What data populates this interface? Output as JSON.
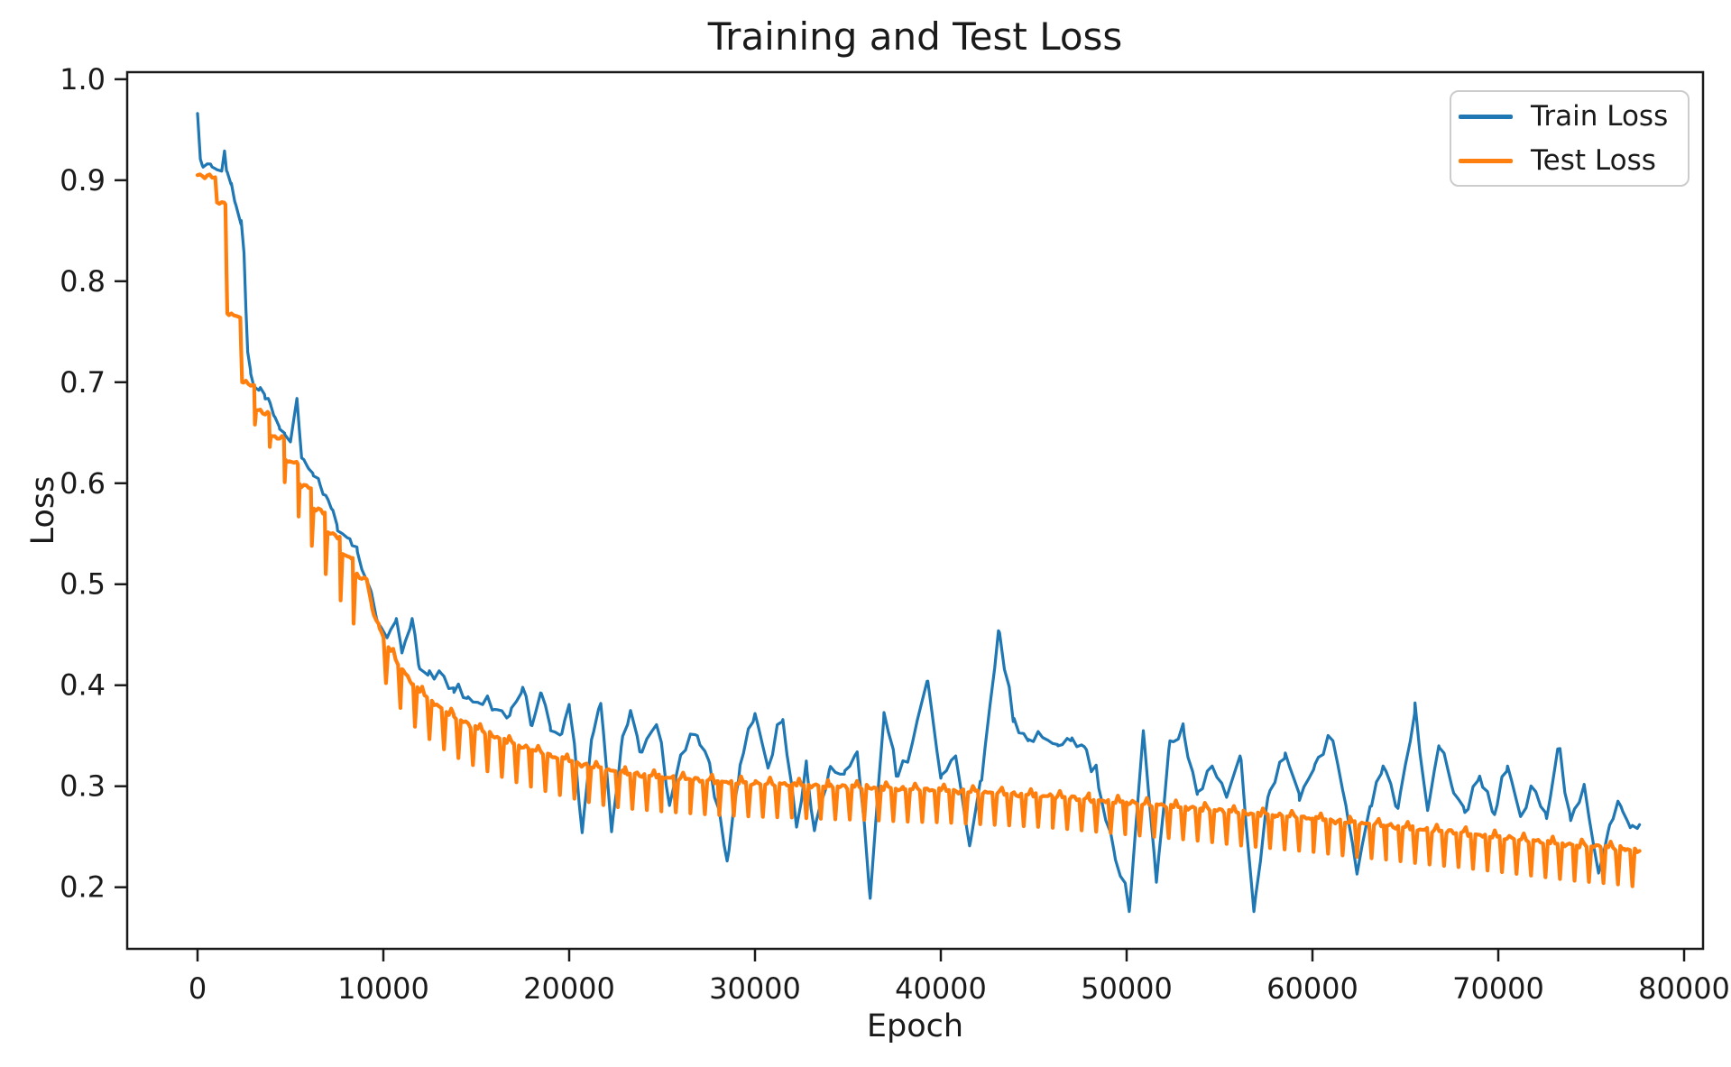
{
  "figure": {
    "title": "Training and Test Loss",
    "xlabel": "Epoch",
    "ylabel": "Loss"
  },
  "legend": {
    "items": [
      {
        "label": "Train Loss",
        "color": "#1f77b4"
      },
      {
        "label": "Test Loss",
        "color": "#ff7f0e"
      }
    ]
  },
  "chart_data": {
    "type": "line",
    "title": "Training and Test Loss",
    "xlabel": "Epoch",
    "ylabel": "Loss",
    "grid": false,
    "legend_position": "upper right",
    "xlim": [
      -3786,
      81019
    ],
    "ylim": [
      0.139,
      1.007
    ],
    "x_ticks": [
      0,
      10000,
      20000,
      30000,
      40000,
      50000,
      60000,
      70000,
      80000
    ],
    "x_tick_labels": [
      "0",
      "10000",
      "20000",
      "30000",
      "40000",
      "50000",
      "60000",
      "70000",
      "80000"
    ],
    "y_ticks": [
      0.2,
      0.3,
      0.4,
      0.5,
      0.6,
      0.7,
      0.8,
      0.9,
      1.0
    ],
    "y_tick_labels": [
      "0.2",
      "0.3",
      "0.4",
      "0.5",
      "0.6",
      "0.7",
      "0.8",
      "0.9",
      "1.0"
    ],
    "series": [
      {
        "name": "Train Loss",
        "color": "#1f77b4",
        "line_width": 3.2,
        "jitter": 0.005,
        "minor_spike_period": 1560,
        "minor_spike_height": 0.012,
        "points": [
          [
            0,
            0.966
          ],
          [
            150,
            0.921
          ],
          [
            300,
            0.913
          ],
          [
            700,
            0.916
          ],
          [
            1000,
            0.911
          ],
          [
            1300,
            0.909
          ],
          [
            1450,
            0.929
          ],
          [
            1600,
            0.908
          ],
          [
            1800,
            0.896
          ],
          [
            2000,
            0.879
          ],
          [
            2200,
            0.866
          ],
          [
            2350,
            0.86
          ],
          [
            2500,
            0.828
          ],
          [
            2600,
            0.773
          ],
          [
            2700,
            0.73
          ],
          [
            2850,
            0.712
          ],
          [
            3000,
            0.698
          ],
          [
            3300,
            0.692
          ],
          [
            3600,
            0.688
          ],
          [
            3800,
            0.684
          ],
          [
            4100,
            0.667
          ],
          [
            4400,
            0.656
          ],
          [
            4700,
            0.648
          ],
          [
            5000,
            0.641
          ],
          [
            5350,
            0.684
          ],
          [
            5600,
            0.625
          ],
          [
            5900,
            0.617
          ],
          [
            6200,
            0.61
          ],
          [
            6600,
            0.598
          ],
          [
            6900,
            0.588
          ],
          [
            7200,
            0.575
          ],
          [
            7500,
            0.559
          ],
          [
            7800,
            0.55
          ],
          [
            8200,
            0.545
          ],
          [
            8600,
            0.532
          ],
          [
            9000,
            0.508
          ],
          [
            9300,
            0.495
          ],
          [
            9700,
            0.462
          ],
          [
            10200,
            0.447
          ],
          [
            10700,
            0.466
          ],
          [
            11000,
            0.432
          ],
          [
            11550,
            0.466
          ],
          [
            11900,
            0.42
          ],
          [
            12400,
            0.41
          ],
          [
            13100,
            0.412
          ],
          [
            13800,
            0.393
          ],
          [
            14500,
            0.387
          ],
          [
            15200,
            0.382
          ],
          [
            16000,
            0.376
          ],
          [
            16800,
            0.37
          ],
          [
            17500,
            0.398
          ],
          [
            18000,
            0.36
          ],
          [
            18500,
            0.392
          ],
          [
            19000,
            0.355
          ],
          [
            19600,
            0.352
          ],
          [
            20000,
            0.381
          ],
          [
            20700,
            0.254
          ],
          [
            21200,
            0.346
          ],
          [
            21700,
            0.382
          ],
          [
            22280,
            0.255
          ],
          [
            22800,
            0.339
          ],
          [
            23300,
            0.375
          ],
          [
            23800,
            0.334
          ],
          [
            24700,
            0.361
          ],
          [
            25400,
            0.281
          ],
          [
            26000,
            0.331
          ],
          [
            26900,
            0.35
          ],
          [
            27500,
            0.326
          ],
          [
            28500,
            0.226
          ],
          [
            29200,
            0.321
          ],
          [
            30000,
            0.372
          ],
          [
            30700,
            0.318
          ],
          [
            31500,
            0.366
          ],
          [
            32230,
            0.261
          ],
          [
            32800,
            0.315
          ],
          [
            33200,
            0.256
          ],
          [
            34000,
            0.316
          ],
          [
            34800,
            0.312
          ],
          [
            35500,
            0.334
          ],
          [
            36200,
            0.189
          ],
          [
            36940,
            0.373
          ],
          [
            37600,
            0.31
          ],
          [
            38300,
            0.33
          ],
          [
            39300,
            0.404
          ],
          [
            40000,
            0.308
          ],
          [
            40800,
            0.33
          ],
          [
            41550,
            0.241
          ],
          [
            42200,
            0.306
          ],
          [
            43100,
            0.454
          ],
          [
            43900,
            0.364
          ],
          [
            44700,
            0.345
          ],
          [
            45440,
            0.349
          ],
          [
            46300,
            0.34
          ],
          [
            47000,
            0.345
          ],
          [
            47730,
            0.339
          ],
          [
            48500,
            0.298
          ],
          [
            49320,
            0.236
          ],
          [
            50140,
            0.176
          ],
          [
            50900,
            0.355
          ],
          [
            51600,
            0.205
          ],
          [
            52330,
            0.345
          ],
          [
            53100,
            0.35
          ],
          [
            53800,
            0.292
          ],
          [
            54600,
            0.32
          ],
          [
            55400,
            0.29
          ],
          [
            56100,
            0.33
          ],
          [
            56850,
            0.176
          ],
          [
            57600,
            0.289
          ],
          [
            58540,
            0.333
          ],
          [
            59300,
            0.286
          ],
          [
            60140,
            0.322
          ],
          [
            61100,
            0.345
          ],
          [
            61800,
            0.281
          ],
          [
            62400,
            0.213
          ],
          [
            63100,
            0.28
          ],
          [
            63800,
            0.32
          ],
          [
            64600,
            0.278
          ],
          [
            65500,
            0.372
          ],
          [
            66200,
            0.276
          ],
          [
            66800,
            0.34
          ],
          [
            67500,
            0.3
          ],
          [
            68200,
            0.274
          ],
          [
            69000,
            0.31
          ],
          [
            69800,
            0.272
          ],
          [
            70500,
            0.32
          ],
          [
            71200,
            0.27
          ],
          [
            72000,
            0.295
          ],
          [
            72600,
            0.268
          ],
          [
            73200,
            0.337
          ],
          [
            73900,
            0.266
          ],
          [
            74600,
            0.3
          ],
          [
            75400,
            0.214
          ],
          [
            76000,
            0.262
          ],
          [
            76600,
            0.28
          ],
          [
            77100,
            0.259
          ],
          [
            77600,
            0.262
          ]
        ]
      },
      {
        "name": "Test Loss",
        "color": "#ff7f0e",
        "line_width": 4.2,
        "jitter": 0.0025,
        "eval_dips": {
          "start": 9400,
          "period": 780,
          "up_tick": 0.006,
          "depth_profile": [
            [
              9400,
              0.042
            ],
            [
              15000,
              0.038
            ],
            [
              25000,
              0.034
            ],
            [
              45000,
              0.031
            ],
            [
              60000,
              0.033
            ],
            [
              77600,
              0.036
            ]
          ]
        },
        "points": [
          [
            0,
            0.905
          ],
          [
            950,
            0.903
          ],
          [
            1050,
            0.878
          ],
          [
            1500,
            0.876
          ],
          [
            1600,
            0.768
          ],
          [
            2300,
            0.764
          ],
          [
            2400,
            0.7
          ],
          [
            3050,
            0.697
          ],
          [
            3090,
            0.658
          ],
          [
            3150,
            0.672
          ],
          [
            3850,
            0.669
          ],
          [
            3890,
            0.636
          ],
          [
            3950,
            0.647
          ],
          [
            4650,
            0.644
          ],
          [
            4690,
            0.601
          ],
          [
            4750,
            0.623
          ],
          [
            5400,
            0.619
          ],
          [
            5440,
            0.567
          ],
          [
            5500,
            0.599
          ],
          [
            6100,
            0.595
          ],
          [
            6150,
            0.538
          ],
          [
            6250,
            0.575
          ],
          [
            6850,
            0.571
          ],
          [
            6900,
            0.51
          ],
          [
            7000,
            0.551
          ],
          [
            7650,
            0.547
          ],
          [
            7700,
            0.484
          ],
          [
            7800,
            0.53
          ],
          [
            8350,
            0.526
          ],
          [
            8400,
            0.461
          ],
          [
            8500,
            0.509
          ],
          [
            9100,
            0.505
          ],
          [
            9400,
            0.476
          ],
          [
            9800,
            0.456
          ],
          [
            10400,
            0.434
          ],
          [
            11000,
            0.416
          ],
          [
            11600,
            0.401
          ],
          [
            12300,
            0.389
          ],
          [
            13000,
            0.379
          ],
          [
            13800,
            0.369
          ],
          [
            14600,
            0.361
          ],
          [
            15400,
            0.354
          ],
          [
            16200,
            0.348
          ],
          [
            17000,
            0.342
          ],
          [
            18000,
            0.336
          ],
          [
            19000,
            0.33
          ],
          [
            20000,
            0.325
          ],
          [
            21000,
            0.32
          ],
          [
            22000,
            0.316
          ],
          [
            23000,
            0.313
          ],
          [
            24000,
            0.311
          ],
          [
            25000,
            0.309
          ],
          [
            26500,
            0.307
          ],
          [
            28000,
            0.305
          ],
          [
            30000,
            0.303
          ],
          [
            32000,
            0.302
          ],
          [
            34000,
            0.3
          ],
          [
            36000,
            0.299
          ],
          [
            38000,
            0.297
          ],
          [
            40000,
            0.296
          ],
          [
            42000,
            0.294
          ],
          [
            44000,
            0.292
          ],
          [
            46000,
            0.29
          ],
          [
            48000,
            0.287
          ],
          [
            50000,
            0.284
          ],
          [
            52000,
            0.281
          ],
          [
            54000,
            0.278
          ],
          [
            56000,
            0.274
          ],
          [
            58000,
            0.271
          ],
          [
            60000,
            0.268
          ],
          [
            62000,
            0.264
          ],
          [
            64000,
            0.261
          ],
          [
            66000,
            0.257
          ],
          [
            68000,
            0.254
          ],
          [
            70000,
            0.25
          ],
          [
            72000,
            0.246
          ],
          [
            74000,
            0.242
          ],
          [
            75500,
            0.24
          ],
          [
            76800,
            0.238
          ],
          [
            77600,
            0.236
          ]
        ]
      }
    ]
  }
}
